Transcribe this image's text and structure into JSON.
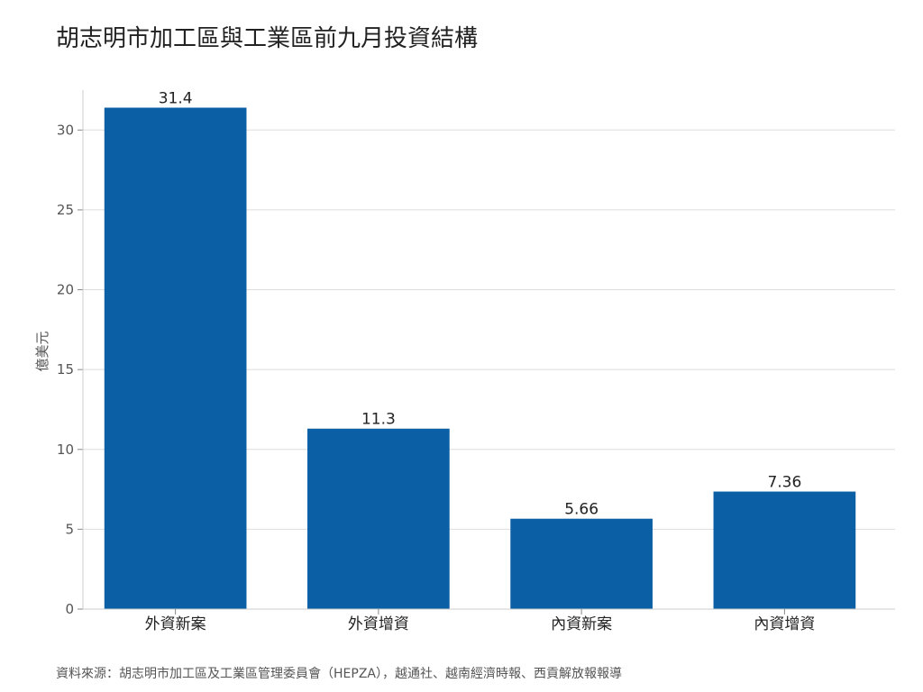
{
  "chart_data": {
    "type": "bar",
    "title": "胡志明市加工區與工業區前九月投資結構",
    "ylabel": "億美元",
    "xlabel": "",
    "categories": [
      "外資新案",
      "外資增資",
      "內資新案",
      "內資增資"
    ],
    "values": [
      31.4,
      11.3,
      5.66,
      7.36
    ],
    "value_labels": [
      "31.4",
      "11.3",
      "5.66",
      "7.36"
    ],
    "ylim": [
      0,
      32.5
    ],
    "yticks": [
      0,
      5,
      10,
      15,
      20,
      25,
      30
    ],
    "grid": true,
    "bar_color": "#0b5fa5",
    "source": "資料來源：胡志明市加工區及工業區管理委員會（HEPZA），越通社、越南經濟時報、西貢解放報報導"
  }
}
